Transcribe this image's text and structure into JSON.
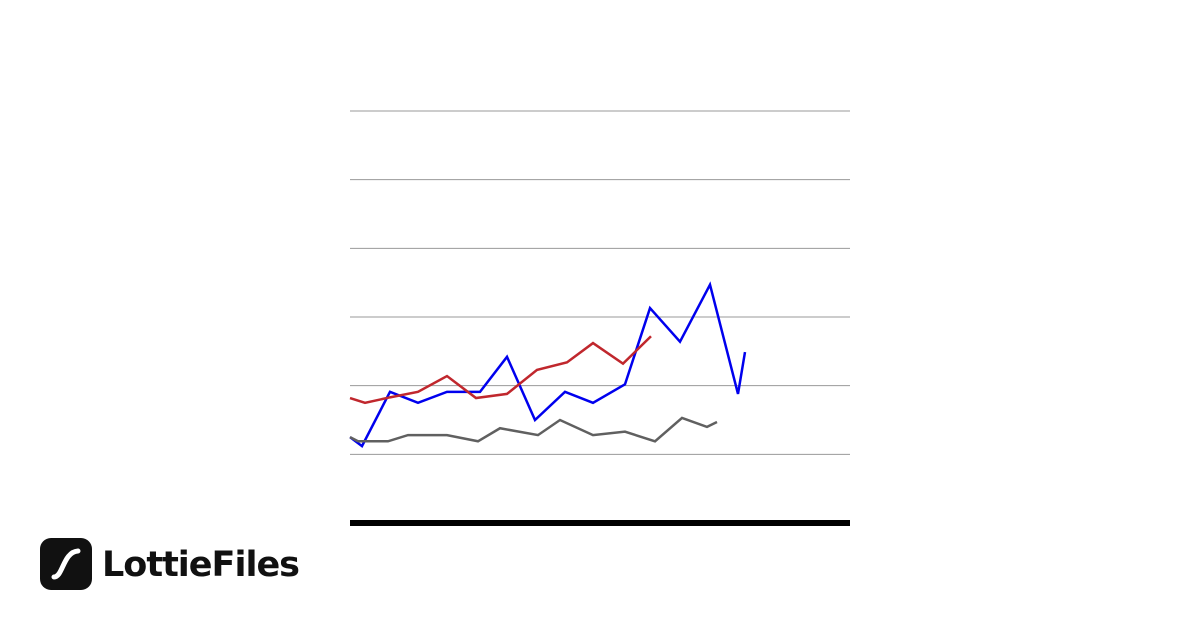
{
  "chart_data": {
    "type": "line",
    "xlim": [
      0,
      100
    ],
    "ylim": [
      0,
      6
    ],
    "yticks": [
      1,
      2,
      3,
      4,
      5,
      6
    ],
    "grid": true,
    "series": [
      {
        "color": "#0000ee",
        "x": [
          0,
          2.4,
          8,
          13.6,
          19.4,
          26,
          31.4,
          37,
          43,
          48.6,
          55,
          60,
          66,
          72,
          77.6,
          79
        ],
        "values": [
          1.25,
          1.12,
          1.91,
          1.75,
          1.91,
          1.91,
          2.42,
          1.5,
          1.91,
          1.75,
          2.02,
          3.13,
          2.64,
          3.47,
          1.88,
          2.49
        ]
      },
      {
        "color": "#c0272d",
        "x": [
          0,
          3,
          8,
          13.6,
          19.4,
          25.2,
          31.4,
          37.4,
          43.4,
          48.6,
          54.6,
          60.2
        ],
        "values": [
          1.82,
          1.75,
          1.83,
          1.91,
          2.14,
          1.82,
          1.88,
          2.23,
          2.34,
          2.62,
          2.32,
          2.72
        ]
      },
      {
        "color": "#606060",
        "x": [
          0,
          1.6,
          7.6,
          11.6,
          19.4,
          25.6,
          30,
          37.6,
          42,
          48.6,
          55,
          61,
          66.4,
          71.4,
          73.4
        ],
        "values": [
          1.25,
          1.19,
          1.19,
          1.28,
          1.28,
          1.19,
          1.38,
          1.28,
          1.5,
          1.28,
          1.33,
          1.19,
          1.53,
          1.4,
          1.47
        ]
      }
    ]
  },
  "brand": "LottieFiles"
}
